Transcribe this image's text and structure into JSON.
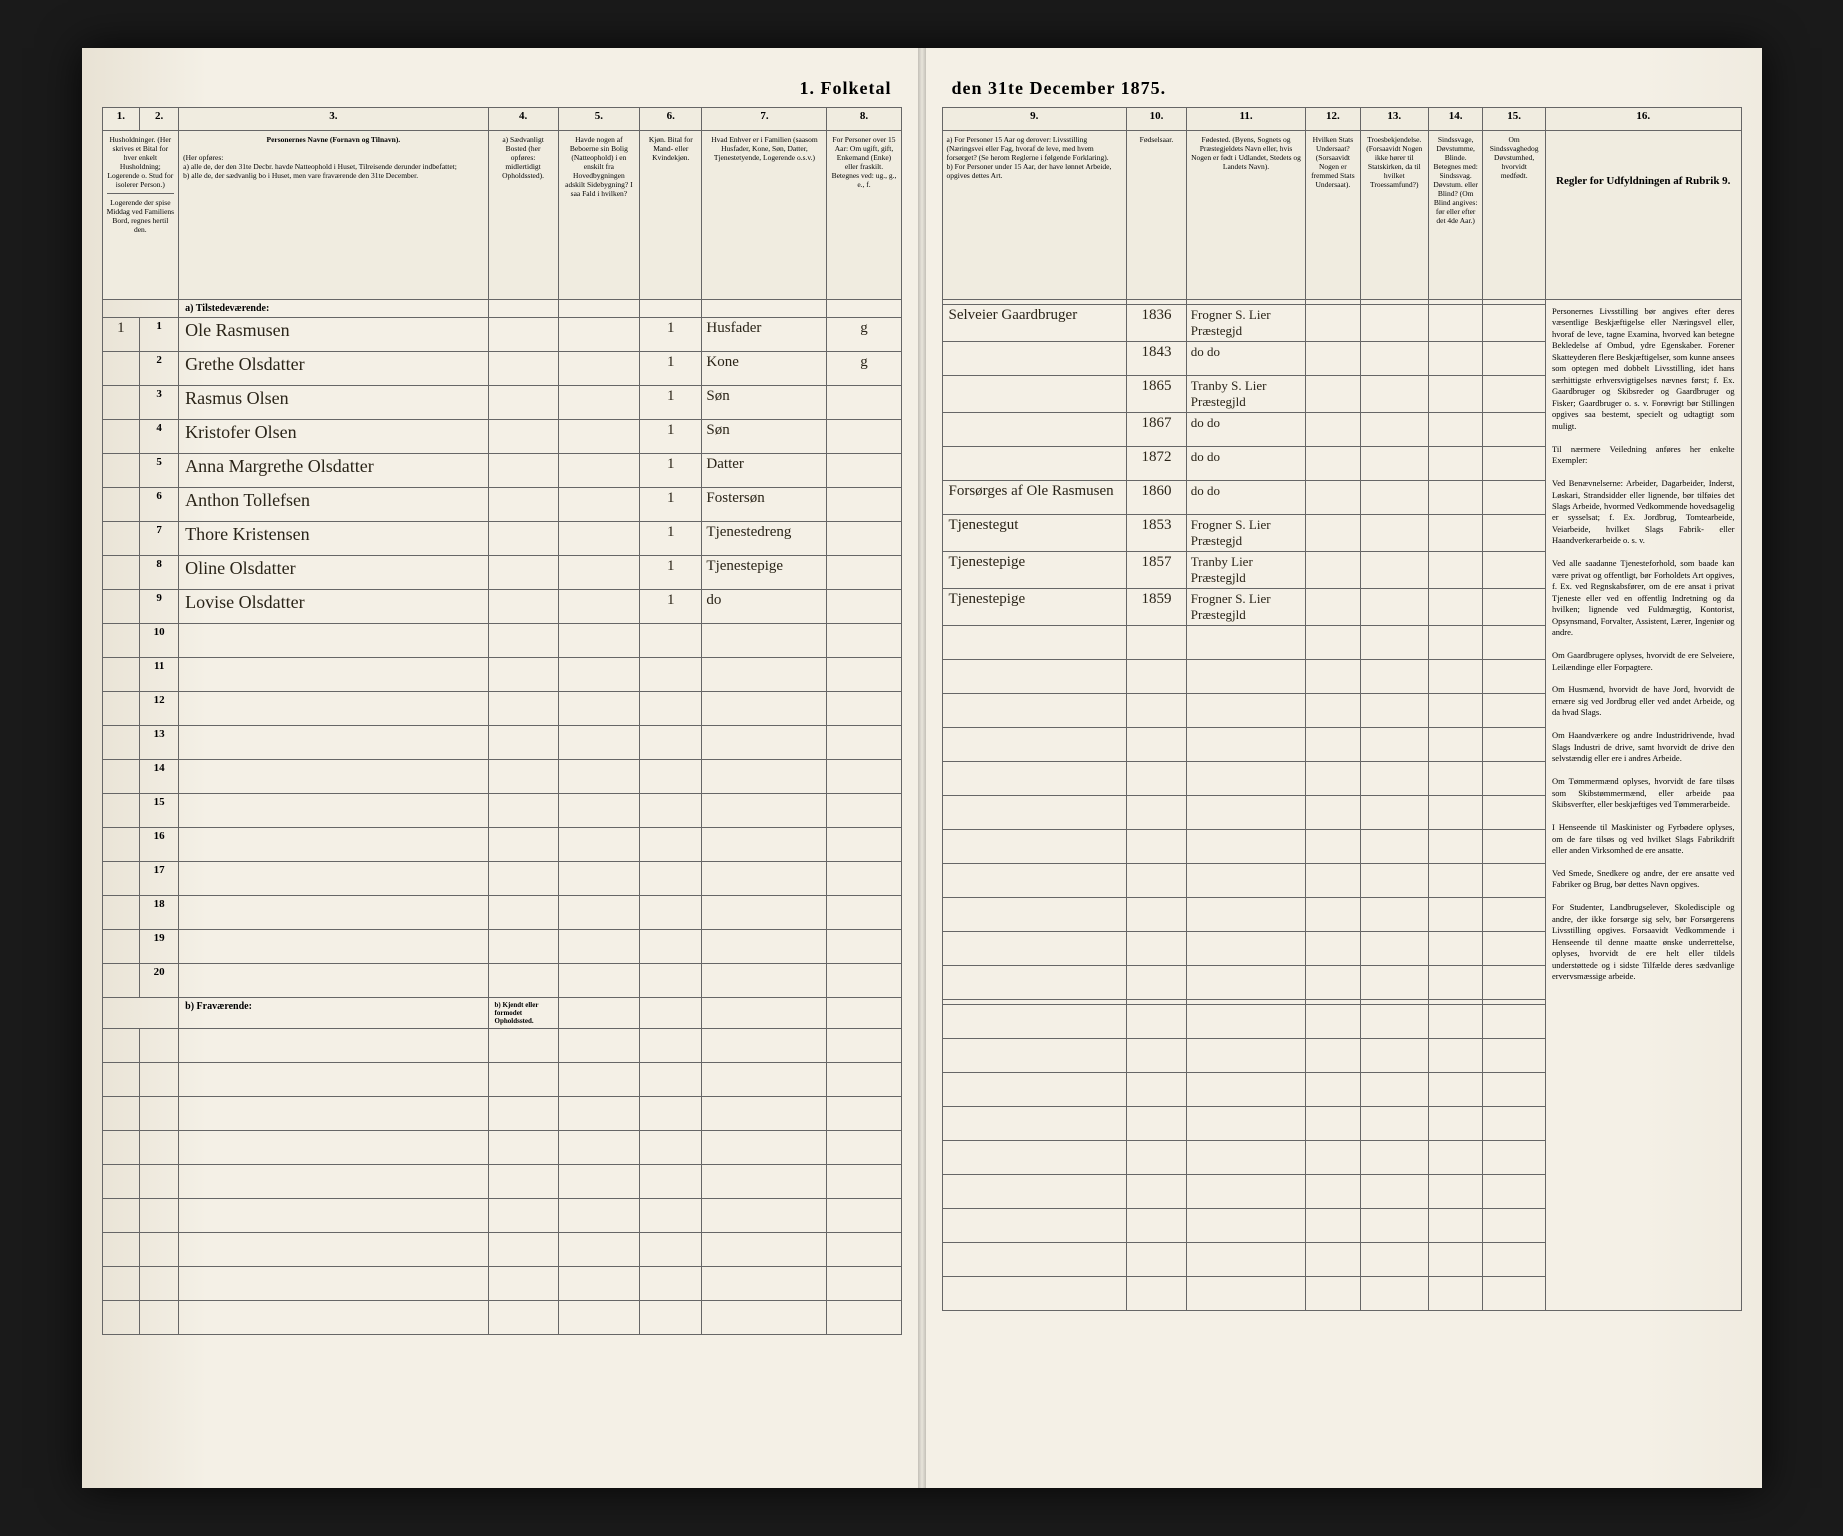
{
  "title_left": "1. Folketal",
  "title_right": "den 31te December 1875.",
  "left_col_nums": [
    "1.",
    "2.",
    "3.",
    "4.",
    "5.",
    "6.",
    "7.",
    "8."
  ],
  "right_col_nums": [
    "9.",
    "10.",
    "11.",
    "12.",
    "13.",
    "14.",
    "15.",
    "16."
  ],
  "left_headers": {
    "c1": "Husholdninger. (Her skrives et Bital for hver enkelt Husholdning; Logerende o. Stud for isolerer Person.)",
    "c1b": "Logerende der spise Middag ved Familiens Bord, regnes hertil den.",
    "c3_title": "Personernes Navne (Fornavn og Tilnavn).",
    "c3_sub": "(Her opføres:\na) alle de, der den 31te Decbr. havde Natteophold i Huset, Tilreisende derunder indbefattet;\nb) alle de, der sædvanlig bo i Huset, men vare fraværende den 31te December.",
    "c4": "a) Sædvanligt Bosted (her opføres: midlertidigt Opholdssted).",
    "c5": "Havde nogen af Beboerne sin Bolig (Natteophold) i en enskilt fra Hovedbygningen adskilt Sidebygning? I saa Fald i hvilken?",
    "c6": "Kjøn. Bital for Mand- eller Kvindekjøn.",
    "c7": "Hvad Enhver er i Familien (saasom Husfader, Kone, Søn, Datter, Tjenestetyende, Logerende o.s.v.)",
    "c8": "For Personer over 15 Aar: Om ugift, gift, Enkemand (Enke) eller fraskilt. Betegnes ved: ug., g., e., f."
  },
  "right_headers": {
    "c9": "a) For Personer 15 Aar og derover: Livsstilling (Næringsvei eller Fag, hvoraf de leve, med hvem forsørget? (Se herom Reglerne i følgende Forklaring).\nb) For Personer under 15 Aar, der have lønnet Arbeide, opgives dettes Art.",
    "c10": "Fødselsaar.",
    "c11": "Fødested. (Byens, Sognets og Præstegjeldets Navn eller, hvis Nogen er født i Udlandet, Stedets og Landets Navn).",
    "c12": "Hvilken Stats Undersaat? (Sorsaavidt Nogen er fremmed Stats Undersaat).",
    "c13": "Troesbekjendelse. (Forsaavidt Nogen ikke hører til Statskirken, da til hvilket Troessamfund?)",
    "c14": "Sindssvage, Døvstumme, Blinde. Betegnes med: Sindssvag. Døvstum. eller Blind? (Om Blind angives: før eller efter det 4de Aar.)",
    "c15": "Om Sindssvaghedog Døvstumhed, hvorvidt medfødt.",
    "c16_title": "Regler for Udfyldningen af Rubrik 9."
  },
  "section_a": "a) Tilstedeværende:",
  "section_b": "b) Fraværende:",
  "section_b_col4": "b) Kjendt eller formodet Opholdssted.",
  "rows": [
    {
      "n": "1",
      "hh": "1",
      "name": "Ole Rasmusen",
      "c6": "1",
      "rel": "Husfader",
      "ms": "g",
      "occ": "Selveier Gaardbruger",
      "yr": "1836",
      "bp": "Frogner S. Lier Præstegjd"
    },
    {
      "n": "2",
      "hh": "",
      "name": "Grethe Olsdatter",
      "c6": "1",
      "rel": "Kone",
      "ms": "g",
      "occ": "",
      "yr": "1843",
      "bp": "do  do"
    },
    {
      "n": "3",
      "hh": "",
      "name": "Rasmus Olsen",
      "c6": "1",
      "rel": "Søn",
      "ms": "",
      "occ": "",
      "yr": "1865",
      "bp": "Tranby S. Lier Præstegjld"
    },
    {
      "n": "4",
      "hh": "",
      "name": "Kristofer Olsen",
      "c6": "1",
      "rel": "Søn",
      "ms": "",
      "occ": "",
      "yr": "1867",
      "bp": "do  do"
    },
    {
      "n": "5",
      "hh": "",
      "name": "Anna Margrethe Olsdatter",
      "c6": "1",
      "rel": "Datter",
      "ms": "",
      "occ": "",
      "yr": "1872",
      "bp": "do  do"
    },
    {
      "n": "6",
      "hh": "",
      "name": "Anthon Tollefsen",
      "c6": "1",
      "rel": "Fostersøn",
      "ms": "",
      "occ": "Forsørges af Ole Rasmusen",
      "yr": "1860",
      "bp": "do  do"
    },
    {
      "n": "7",
      "hh": "",
      "name": "Thore Kristensen",
      "c6": "1",
      "rel": "Tjenestedreng",
      "ms": "",
      "occ": "Tjenestegut",
      "yr": "1853",
      "bp": "Frogner S. Lier Præstegjd"
    },
    {
      "n": "8",
      "hh": "",
      "name": "Oline Olsdatter",
      "c6": "1",
      "rel": "Tjenestepige",
      "ms": "",
      "occ": "Tjenestepige",
      "yr": "1857",
      "bp": "Tranby Lier Præstegjld"
    },
    {
      "n": "9",
      "hh": "",
      "name": "Lovise Olsdatter",
      "c6": "1",
      "rel": "do",
      "ms": "",
      "occ": "Tjenestepige",
      "yr": "1859",
      "bp": "Frogner S. Lier Præstegjld"
    }
  ],
  "empty_rows": [
    "10",
    "11",
    "12",
    "13",
    "14",
    "15",
    "16",
    "17",
    "18",
    "19",
    "20"
  ],
  "instructions_text": "Personernes Livsstilling bør angives efter deres væsentlige Beskjæftigelse eller Næringsvel eller, hvoraf de leve, tagne Examina, hvorved kan betegne Bekledelse af Ombud, ydre Egenskaber. Forener Skatteyderen flere Beskjæftigelser, som kunne ansees som optegen med dobbelt Livsstilling, idet hans særhittigste erhversvigtigelses nævnes først; f. Ex. Gaardbruger og Skibsreder og Gaardbruger og Fisker; Gaardbruger o. s. v. Forøvrigt bør Stillingen opgives saa bestemt, specielt og udtagtigt som muligt.\n\nTil nærmere Veiledning anføres her enkelte Exempler:\n\nVed Benævnelserne: Arbeider, Dagarbeider, Inderst, Løskari, Strandsidder eller lignende, bør tilføies det Slags Arbeide, hvormed Vedkommende hovedsagelig er sysselsat; f. Ex. Jordbrug, Tomtearbeide, Veiarbeide, hvilket Slags Fabrik- eller Haandverkerarbeide o. s. v.\n\nVed alle saadanne Tjenesteforhold, som baade kan være privat og offentligt, bør Forholdets Art opgives, f. Ex. ved Regnskabsfører, om de ere ansat i privat Tjeneste eller ved en offentlig Indretning og da hvilken; lignende ved Fuldmægtig, Kontorist, Opsynsmand, Forvalter, Assistent, Lærer, Ingeniør og andre.\n\nOm Gaardbrugere oplyses, hvorvidt de ere Selveiere, Leilændinge eller Forpagtere.\n\nOm Husmænd, hvorvidt de have Jord, hvorvidt de ernære sig ved Jordbrug eller ved andet Arbeide, og da hvad Slags.\n\nOm Haandværkere og andre Industridrivende, hvad Slags Industri de drive, samt hvorvidt de drive den selvstændig eller ere i andres Arbeide.\n\nOm Tømmermænd oplyses, hvorvidt de fare tilsøs som Skibstømmermænd, eller arbeide paa Skibsverfter, eller beskjæftiges ved Tømmerarbeide.\n\nI Henseende til Maskinister og Fyrbødere oplyses, om de fare tilsøs og ved hvilket Slags Fabrikdrift eller anden Virksomhed de ere ansatte.\n\nVed Smede, Snedkere og andre, der ere ansatte ved Fabriker og Brug, bør dettes Navn opgives.\n\nFor Studenter, Landbrugselever, Skoledisciple og andre, der ikke forsørge sig selv, bør Forsørgerens Livsstilling opgives. Forsaavidt Vedkommende i Henseende til denne maatte ønske underrettelse, oplyses, hvorvidt de ere helt eller tildels understøttede og i sidste Tilfælde deres sædvanlige ervervsmæssige arbeide."
}
